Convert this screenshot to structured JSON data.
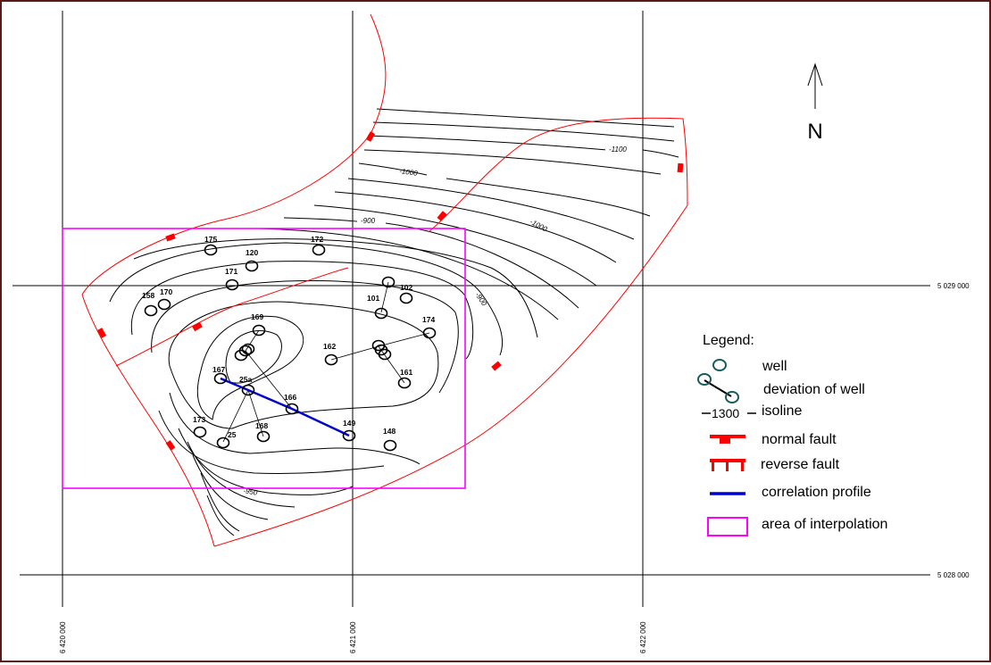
{
  "map": {
    "north_label": "N",
    "eastings": [
      "6 420 000",
      "6 421 000",
      "6 422 000"
    ],
    "northings": [
      "5 029 000",
      "5 028 000"
    ],
    "contour_labels": [
      "-1100",
      "-1000",
      "-1000",
      "-900",
      "-900",
      "-950"
    ],
    "wells": [
      {
        "id": "175"
      },
      {
        "id": "120"
      },
      {
        "id": "172"
      },
      {
        "id": "171"
      },
      {
        "id": "158"
      },
      {
        "id": "170"
      },
      {
        "id": "101"
      },
      {
        "id": "102"
      },
      {
        "id": "169"
      },
      {
        "id": "174"
      },
      {
        "id": "162"
      },
      {
        "id": "161"
      },
      {
        "id": "167"
      },
      {
        "id": "25a"
      },
      {
        "id": "166"
      },
      {
        "id": "173"
      },
      {
        "id": "25"
      },
      {
        "id": "168"
      },
      {
        "id": "149"
      },
      {
        "id": "148"
      }
    ],
    "colors": {
      "fault": "#ff0000",
      "profile": "#0000cc",
      "interpolation_area": "#ff00ff",
      "well_legend": "#1a5c5c",
      "grid": "#000000"
    }
  },
  "legend": {
    "title": "Legend:",
    "items": {
      "well": "well",
      "deviation": "deviation of well",
      "isoline_value": "1300",
      "isoline": "isoline",
      "normal_fault": "normal fault",
      "reverse_fault": "reverse fault",
      "profile": "correlation profile",
      "area": "area of interpolation"
    }
  }
}
